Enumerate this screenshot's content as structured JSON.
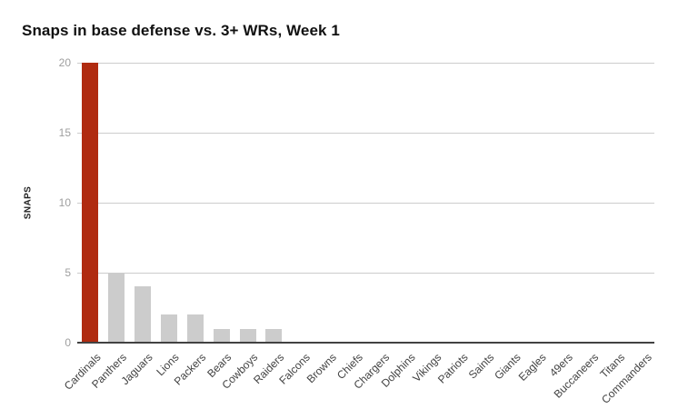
{
  "chart_data": {
    "type": "bar",
    "title": "Snaps in base defense vs. 3+ WRs, Week 1",
    "xlabel": "",
    "ylabel": "SNAPS",
    "categories": [
      "Cardinals",
      "Panthers",
      "Jaguars",
      "Lions",
      "Packers",
      "Bears",
      "Cowboys",
      "Raiders",
      "Falcons",
      "Browns",
      "Chiefs",
      "Chargers",
      "Dolphins",
      "Vikings",
      "Patriots",
      "Saints",
      "Giants",
      "Eagles",
      "49ers",
      "Buccaneers",
      "Titans",
      "Commanders"
    ],
    "values": [
      20,
      5,
      4,
      2,
      2,
      1,
      1,
      1,
      0,
      0,
      0,
      0,
      0,
      0,
      0,
      0,
      0,
      0,
      0,
      0,
      0,
      0
    ],
    "ylim": [
      0,
      20
    ],
    "yticks": [
      0,
      5,
      10,
      15,
      20
    ],
    "grid": true,
    "legend": false,
    "highlight_index": 0,
    "bar_color_highlight": "#B02B10",
    "bar_color_default": "#CCCCCC"
  },
  "colors": {
    "background": "#FFFFFF",
    "gridline": "#CCCCCC",
    "axis_line": "#424242",
    "y_tick_text": "#9E9E9E",
    "x_tick_text": "#424242",
    "title_text": "#111111"
  }
}
